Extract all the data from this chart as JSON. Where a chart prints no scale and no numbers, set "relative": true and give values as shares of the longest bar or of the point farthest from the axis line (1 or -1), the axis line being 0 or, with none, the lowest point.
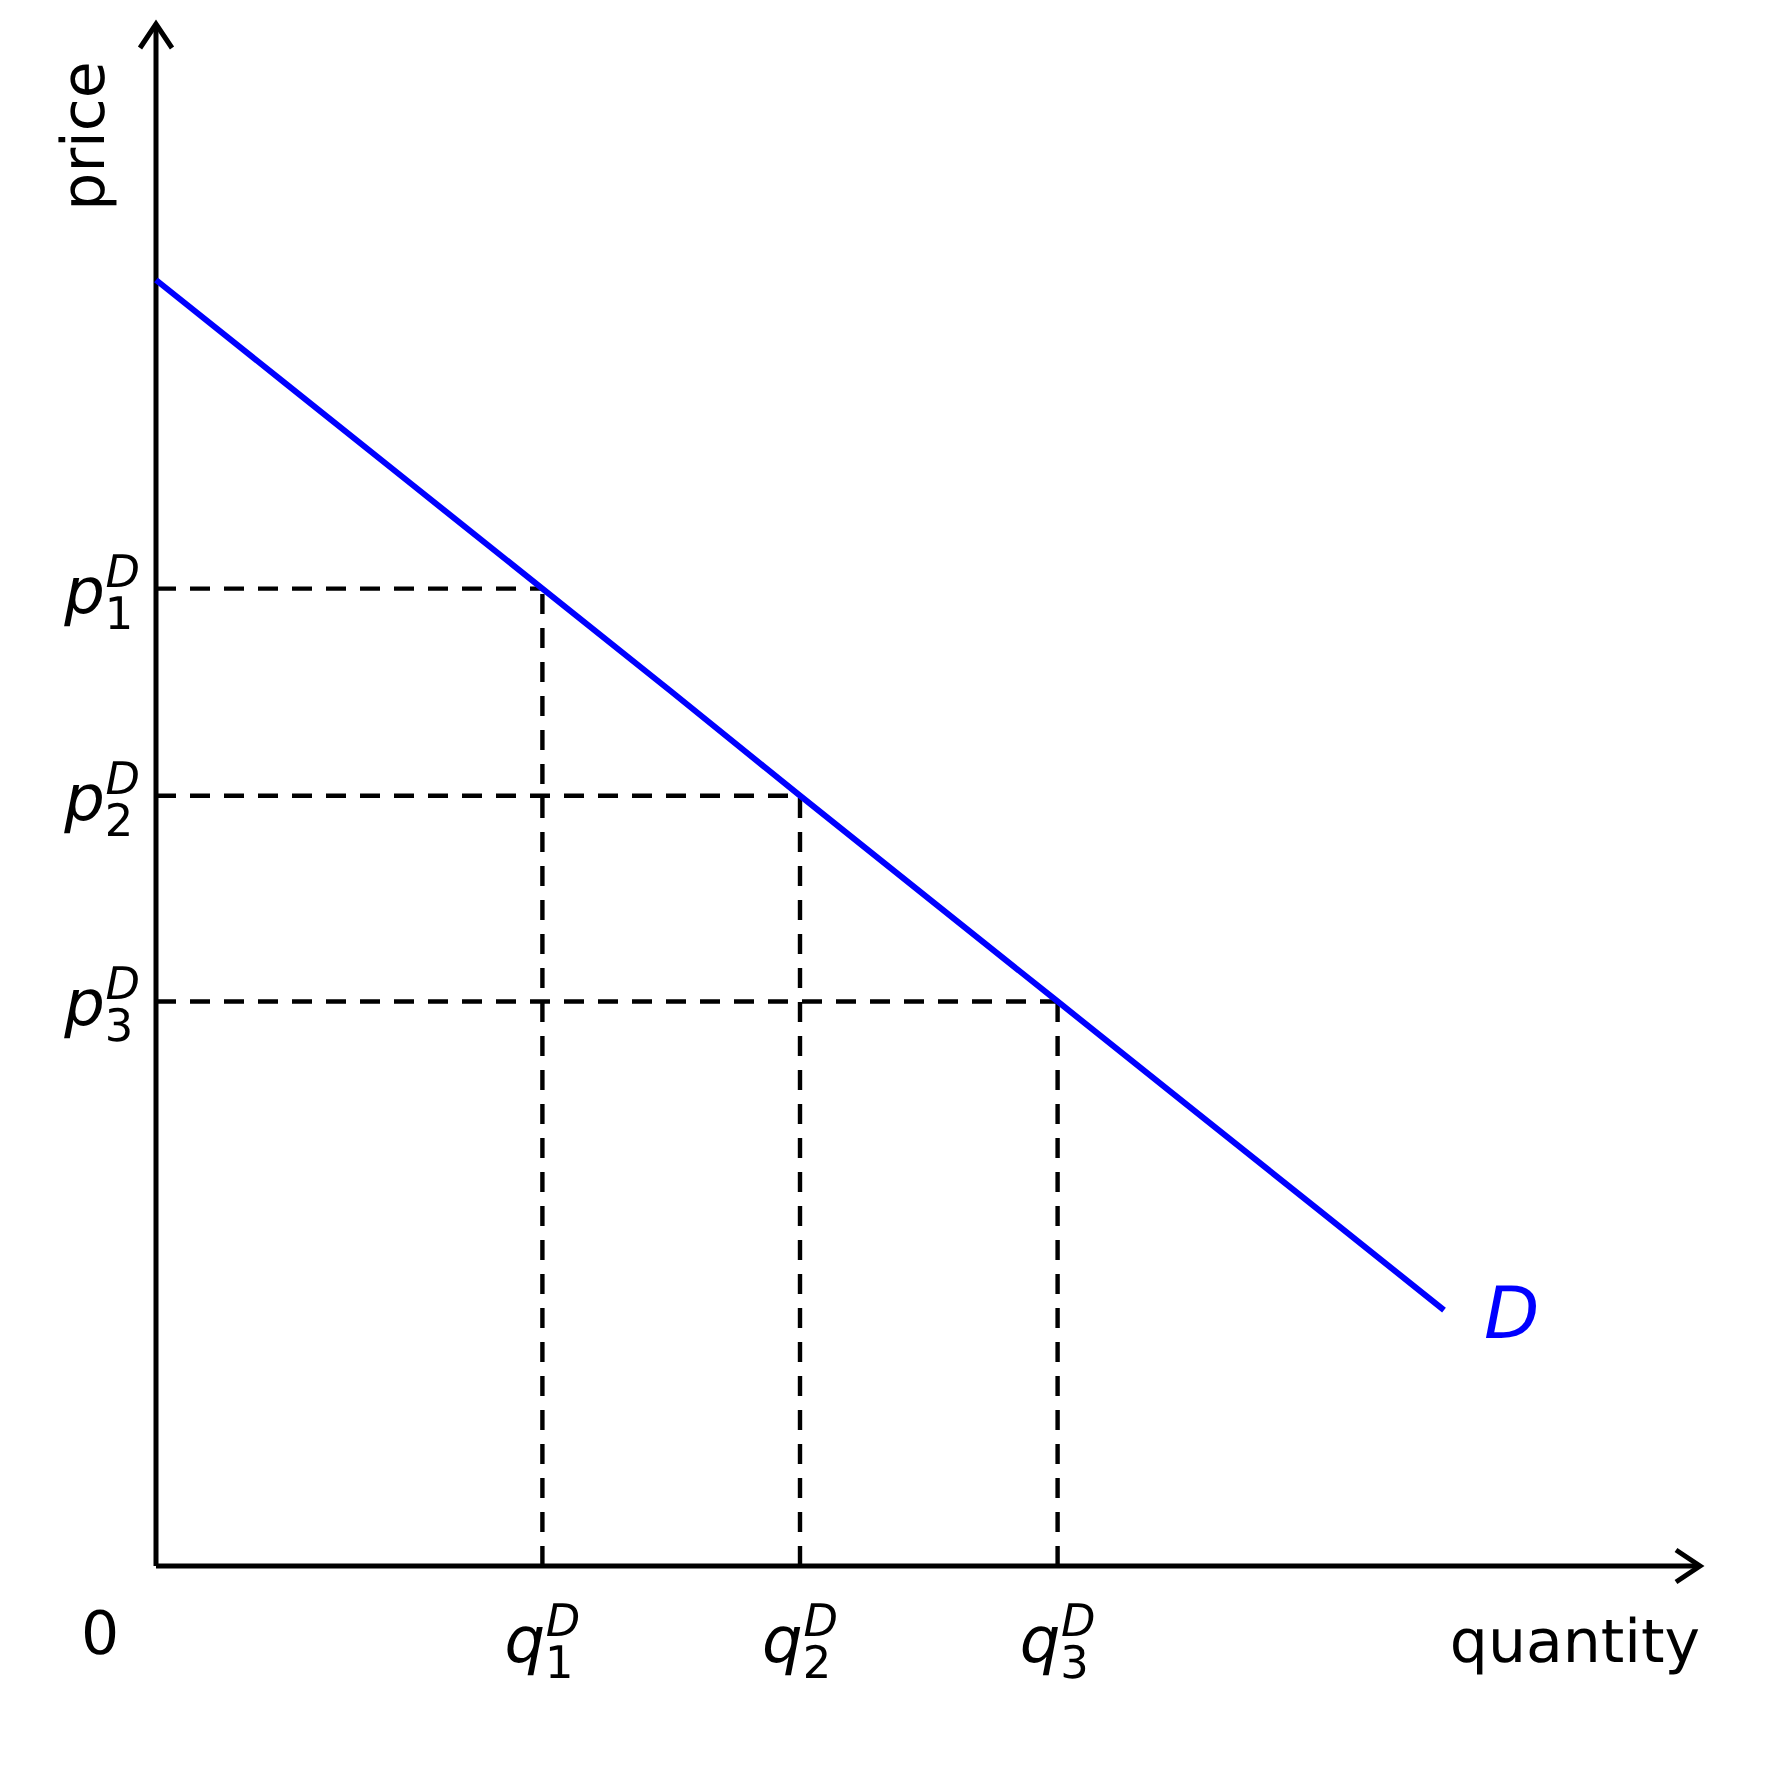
{
  "chart_data": {
    "type": "line",
    "xlabel": "quantity",
    "ylabel": "price",
    "relative": true,
    "annotations": [
      "0"
    ],
    "categories": [
      null,
      null,
      null,
      "q$_{1}$$^{D}$",
      null,
      "q$_{2}$$^{D}$",
      null,
      "q$_{3}$$^{D}$",
      null,
      null,
      null
    ],
    "series": [
      {
        "name": "D",
        "color": "#0000ff",
        "values": [
          1,
          0.92,
          0.84,
          0.76,
          0.68,
          0.599,
          0.519,
          0.439,
          0.359,
          0.279,
          0.199
        ]
      }
    ],
    "ref_lines": [
      {
        "axis": "y",
        "value": 0.76,
        "label": "p$_{1}$$^{D}$",
        "line_style": "dashed",
        "color": "#000000"
      },
      {
        "axis": "y",
        "value": 0.599,
        "label": "p$_{2}$$^{D}$",
        "line_style": "dashed",
        "color": "#000000"
      },
      {
        "axis": "y",
        "value": 0.439,
        "label": "p$_{3}$$^{D}$",
        "line_style": "dashed",
        "color": "#000000"
      },
      {
        "axis": "x",
        "value": "q$_{1}$$^{D}$",
        "line_style": "dashed",
        "color": "#000000"
      },
      {
        "axis": "x",
        "value": "q$_{2}$$^{D}$",
        "line_style": "dashed",
        "color": "#000000"
      },
      {
        "axis": "x",
        "value": "q$_{3}$$^{D}$",
        "line_style": "dashed",
        "color": "#000000"
      }
    ]
  }
}
